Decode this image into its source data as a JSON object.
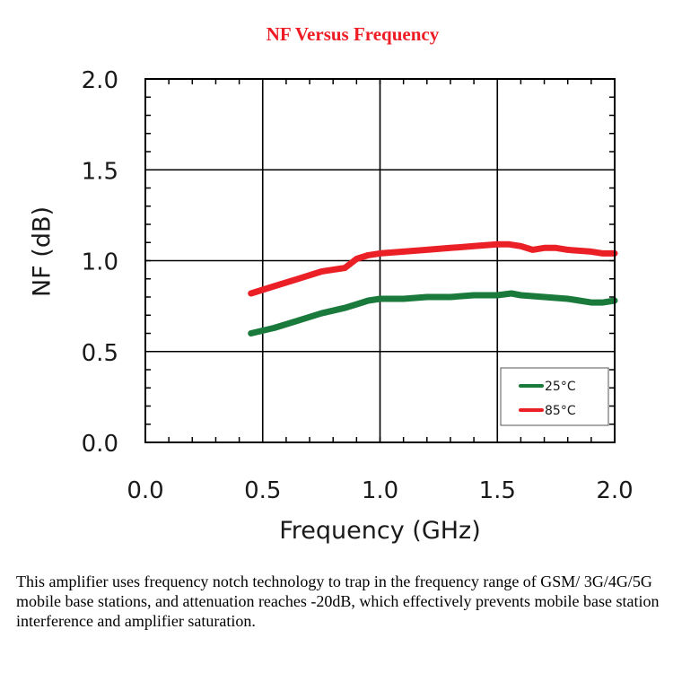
{
  "colors": {
    "title": "#ee1c25",
    "series_25c": "#1a7a3c",
    "series_85c": "#ea2026",
    "grid": "#000000",
    "text": "#1a1a1a"
  },
  "chart_data": {
    "type": "line",
    "title": "NF Versus Frequency",
    "xlabel": "Frequency (GHz)",
    "ylabel": "NF (dB)",
    "xlim": [
      0.0,
      2.0
    ],
    "ylim": [
      0.0,
      2.0
    ],
    "xticks": [
      "0.0",
      "0.5",
      "1.0",
      "1.5",
      "2.0"
    ],
    "yticks": [
      "0.0",
      "0.5",
      "1.0",
      "1.5",
      "2.0"
    ],
    "xtick_values": [
      0.0,
      0.5,
      1.0,
      1.5,
      2.0
    ],
    "ytick_values": [
      0.0,
      0.5,
      1.0,
      1.5,
      2.0
    ],
    "grid": true,
    "legend_position": "bottom-right",
    "series": [
      {
        "name": "25°C",
        "color": "#1a7a3c",
        "x": [
          0.45,
          0.55,
          0.65,
          0.75,
          0.85,
          0.9,
          0.95,
          1.0,
          1.1,
          1.2,
          1.3,
          1.4,
          1.5,
          1.56,
          1.6,
          1.7,
          1.8,
          1.85,
          1.9,
          1.95,
          2.0
        ],
        "y": [
          0.6,
          0.63,
          0.67,
          0.71,
          0.74,
          0.76,
          0.78,
          0.79,
          0.79,
          0.8,
          0.8,
          0.81,
          0.81,
          0.82,
          0.81,
          0.8,
          0.79,
          0.78,
          0.77,
          0.77,
          0.78
        ]
      },
      {
        "name": "85°C",
        "color": "#ea2026",
        "x": [
          0.45,
          0.55,
          0.65,
          0.75,
          0.8,
          0.85,
          0.9,
          0.95,
          1.0,
          1.1,
          1.2,
          1.3,
          1.4,
          1.5,
          1.55,
          1.6,
          1.65,
          1.7,
          1.75,
          1.8,
          1.9,
          1.95,
          2.0
        ],
        "y": [
          0.82,
          0.86,
          0.9,
          0.94,
          0.95,
          0.96,
          1.01,
          1.03,
          1.04,
          1.05,
          1.06,
          1.07,
          1.08,
          1.09,
          1.09,
          1.08,
          1.06,
          1.07,
          1.07,
          1.06,
          1.05,
          1.04,
          1.04
        ]
      }
    ]
  },
  "caption": "This amplifier uses frequency notch technology to trap in the frequency range of GSM/ 3G/4G/5G mobile base stations, and attenuation reaches -20dB, which effectively prevents mobile base station interference and amplifier saturation."
}
